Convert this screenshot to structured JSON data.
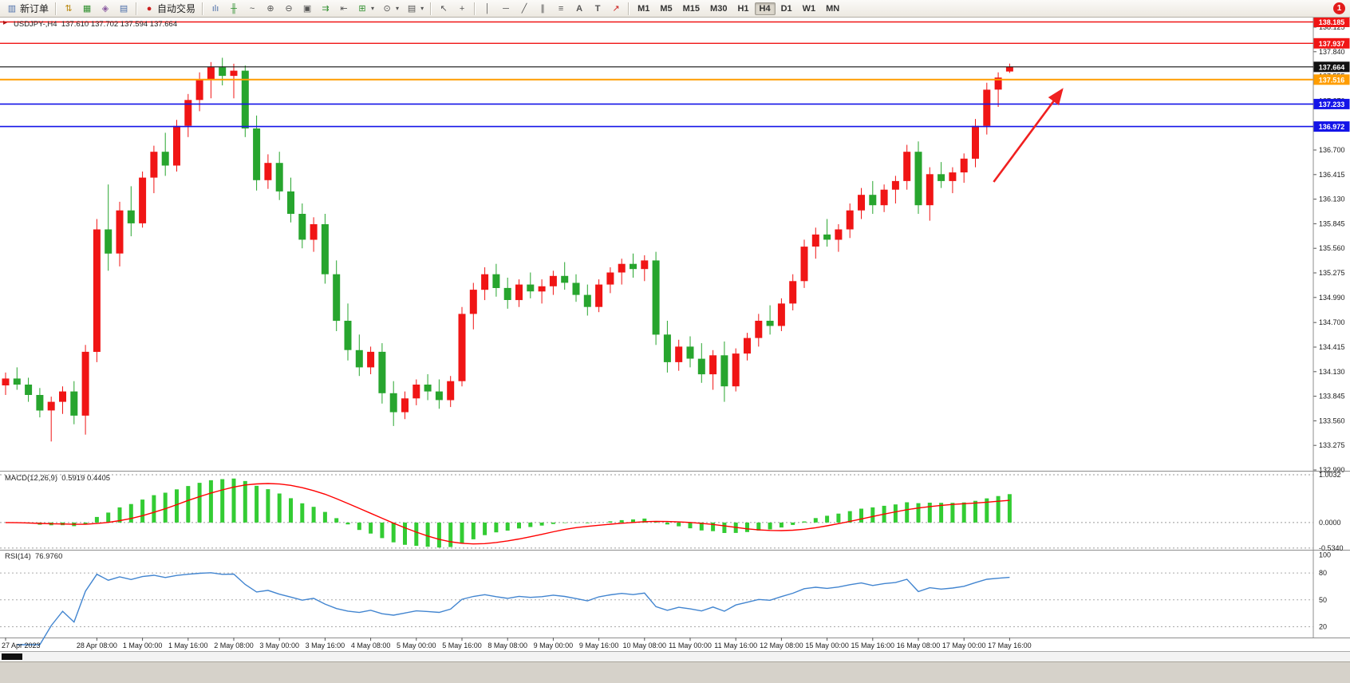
{
  "toolbar": {
    "new_order_label": "新订单",
    "autotrading_label": "自动交易",
    "timeframes": [
      "M1",
      "M5",
      "M15",
      "M30",
      "H1",
      "H4",
      "D1",
      "W1",
      "MN"
    ],
    "active_timeframe": "H4",
    "notification_count": "1",
    "icons": {
      "new_order": "▥",
      "market_watch": "⇅",
      "data_window": "▦",
      "navigator": "◈",
      "terminal": "▤",
      "autotrading": "●",
      "bar_chart": "ılı",
      "candlestick": "╫",
      "line_chart": "~",
      "zoom_in": "⊕",
      "zoom_out": "⊖",
      "tile_windows": "▣",
      "auto_scroll": "⇉",
      "chart_shift": "⇤",
      "indicators": "⊞",
      "periods": "⊙",
      "templates": "▤",
      "caret": "▾",
      "cursor": "↖",
      "crosshair": "+",
      "vertical_line": "│",
      "horizontal_line": "─",
      "trendline": "╱",
      "channel": "∥",
      "fibonacci": "≡",
      "text": "A",
      "text_label": "T",
      "arrows_tool": "↗",
      "one_click": "▸"
    }
  },
  "quote": {
    "symbol_period": "USDJPY-,H4",
    "ohlc": "137.610 137.702 137.594 137.664"
  },
  "indicator_labels": {
    "macd": "MACD(12,26,9)",
    "macd_values": "0.5919 0.4405",
    "rsi": "RSI(14)",
    "rsi_value": "76.9760"
  },
  "price_axis": {
    "labels": [
      "138.125",
      "137.840",
      "137.555",
      "137.270",
      "136.985",
      "136.700",
      "136.415",
      "136.130",
      "135.845",
      "135.560",
      "135.275",
      "134.990",
      "134.700",
      "134.415",
      "134.130",
      "133.845",
      "133.560",
      "133.275",
      "132.990"
    ]
  },
  "macd_axis": [
    {
      "v": 1.0032,
      "label": "1.0032"
    },
    {
      "v": 0,
      "label": "0.0000"
    },
    {
      "v": -0.534,
      "label": "-0.5340"
    }
  ],
  "rsi_axis": [
    {
      "v": 100,
      "label": "100"
    },
    {
      "v": 80,
      "label": "80"
    },
    {
      "v": 50,
      "label": "50"
    },
    {
      "v": 20,
      "label": "20"
    }
  ],
  "chart_data": {
    "type": "candlestick",
    "symbol": "USDJPY",
    "timeframe": "H4",
    "current_ohlc": {
      "open": 137.61,
      "high": 137.702,
      "low": 137.594,
      "close": 137.664
    },
    "colors": {
      "up": "#f01515",
      "down": "#27a52e",
      "macd": "#33cc33",
      "signal": "#ff0000",
      "rsi": "#4285d0"
    },
    "price_range": {
      "min": 132.99,
      "max": 138.236
    },
    "candles": [
      [
        133.97,
        134.12,
        133.86,
        134.05
      ],
      [
        134.05,
        134.18,
        133.92,
        133.98
      ],
      [
        133.98,
        134.06,
        133.78,
        133.86
      ],
      [
        133.86,
        133.94,
        133.6,
        133.68
      ],
      [
        133.68,
        133.84,
        133.32,
        133.78
      ],
      [
        133.78,
        133.96,
        133.64,
        133.9
      ],
      [
        133.9,
        134.02,
        133.52,
        133.62
      ],
      [
        133.62,
        134.44,
        133.4,
        134.36
      ],
      [
        134.36,
        135.9,
        134.24,
        135.78
      ],
      [
        135.78,
        136.3,
        135.3,
        135.5
      ],
      [
        135.5,
        136.1,
        135.35,
        136.0
      ],
      [
        136.0,
        136.28,
        135.7,
        135.85
      ],
      [
        135.85,
        136.45,
        135.8,
        136.38
      ],
      [
        136.38,
        136.75,
        136.2,
        136.68
      ],
      [
        136.68,
        136.9,
        136.4,
        136.52
      ],
      [
        136.52,
        137.05,
        136.45,
        136.98
      ],
      [
        136.98,
        137.35,
        136.85,
        137.28
      ],
      [
        137.28,
        137.6,
        137.15,
        137.52
      ],
      [
        137.52,
        137.72,
        137.3,
        137.66
      ],
      [
        137.66,
        137.77,
        137.45,
        137.56
      ],
      [
        137.56,
        137.7,
        137.3,
        137.62
      ],
      [
        137.62,
        137.68,
        136.85,
        136.95
      ],
      [
        136.95,
        137.1,
        136.23,
        136.35
      ],
      [
        136.35,
        136.65,
        136.25,
        136.55
      ],
      [
        136.55,
        136.68,
        136.12,
        136.22
      ],
      [
        136.22,
        136.38,
        135.86,
        135.96
      ],
      [
        135.96,
        136.08,
        135.56,
        135.66
      ],
      [
        135.66,
        135.92,
        135.52,
        135.84
      ],
      [
        135.84,
        135.96,
        135.15,
        135.26
      ],
      [
        135.26,
        135.42,
        134.6,
        134.72
      ],
      [
        134.72,
        134.92,
        134.26,
        134.38
      ],
      [
        134.38,
        134.56,
        134.08,
        134.18
      ],
      [
        134.18,
        134.42,
        134.1,
        134.36
      ],
      [
        134.36,
        134.46,
        133.76,
        133.88
      ],
      [
        133.88,
        134.02,
        133.5,
        133.66
      ],
      [
        133.66,
        133.9,
        133.58,
        133.82
      ],
      [
        133.82,
        134.04,
        133.74,
        133.98
      ],
      [
        133.98,
        134.1,
        133.8,
        133.9
      ],
      [
        133.9,
        134.04,
        133.7,
        133.8
      ],
      [
        133.8,
        134.08,
        133.72,
        134.02
      ],
      [
        134.02,
        134.88,
        133.96,
        134.8
      ],
      [
        134.8,
        135.16,
        134.62,
        135.08
      ],
      [
        135.08,
        135.34,
        134.96,
        135.26
      ],
      [
        135.26,
        135.38,
        135.0,
        135.1
      ],
      [
        135.1,
        135.22,
        134.86,
        134.96
      ],
      [
        134.96,
        135.2,
        134.88,
        135.14
      ],
      [
        135.14,
        135.28,
        134.98,
        135.06
      ],
      [
        135.06,
        135.2,
        134.92,
        135.12
      ],
      [
        135.12,
        135.3,
        135.02,
        135.24
      ],
      [
        135.24,
        135.4,
        135.08,
        135.16
      ],
      [
        135.16,
        135.26,
        134.94,
        135.02
      ],
      [
        135.02,
        135.14,
        134.78,
        134.88
      ],
      [
        134.88,
        135.2,
        134.82,
        135.14
      ],
      [
        135.14,
        135.34,
        135.04,
        135.28
      ],
      [
        135.28,
        135.44,
        135.14,
        135.38
      ],
      [
        135.38,
        135.5,
        135.22,
        135.32
      ],
      [
        135.32,
        135.48,
        135.18,
        135.42
      ],
      [
        135.42,
        135.52,
        134.44,
        134.56
      ],
      [
        134.56,
        134.72,
        134.12,
        134.24
      ],
      [
        134.24,
        134.5,
        134.14,
        134.42
      ],
      [
        134.42,
        134.54,
        134.18,
        134.28
      ],
      [
        134.28,
        134.46,
        134.0,
        134.1
      ],
      [
        134.1,
        134.38,
        133.92,
        134.32
      ],
      [
        134.32,
        134.48,
        133.78,
        133.96
      ],
      [
        133.96,
        134.4,
        133.9,
        134.34
      ],
      [
        134.34,
        134.58,
        134.26,
        134.52
      ],
      [
        134.52,
        134.8,
        134.42,
        134.72
      ],
      [
        134.72,
        134.9,
        134.56,
        134.66
      ],
      [
        134.66,
        134.98,
        134.6,
        134.92
      ],
      [
        134.92,
        135.26,
        134.84,
        135.18
      ],
      [
        135.18,
        135.66,
        135.1,
        135.58
      ],
      [
        135.58,
        135.8,
        135.44,
        135.72
      ],
      [
        135.72,
        135.9,
        135.58,
        135.66
      ],
      [
        135.66,
        135.84,
        135.52,
        135.78
      ],
      [
        135.78,
        136.08,
        135.68,
        136.0
      ],
      [
        136.0,
        136.26,
        135.9,
        136.18
      ],
      [
        136.18,
        136.34,
        135.96,
        136.06
      ],
      [
        136.06,
        136.3,
        135.98,
        136.24
      ],
      [
        136.24,
        136.4,
        136.08,
        136.34
      ],
      [
        136.34,
        136.76,
        136.24,
        136.68
      ],
      [
        136.68,
        136.8,
        135.96,
        136.06
      ],
      [
        136.06,
        136.5,
        135.88,
        136.42
      ],
      [
        136.42,
        136.56,
        136.26,
        136.34
      ],
      [
        136.34,
        136.5,
        136.2,
        136.44
      ],
      [
        136.44,
        136.66,
        136.32,
        136.6
      ],
      [
        136.6,
        137.06,
        136.5,
        136.98
      ],
      [
        136.98,
        137.48,
        136.88,
        137.4
      ],
      [
        137.4,
        137.6,
        137.2,
        137.54
      ],
      [
        137.61,
        137.702,
        137.594,
        137.664
      ]
    ],
    "time_labels": [
      [
        0,
        "27 Apr 2023"
      ],
      [
        8,
        "28 Apr 08:00"
      ],
      [
        12,
        "1 May 00:00"
      ],
      [
        16,
        "1 May 16:00"
      ],
      [
        20,
        "2 May 08:00"
      ],
      [
        24,
        "3 May 00:00"
      ],
      [
        28,
        "3 May 16:00"
      ],
      [
        32,
        "4 May 08:00"
      ],
      [
        36,
        "5 May 00:00"
      ],
      [
        40,
        "5 May 16:00"
      ],
      [
        44,
        "8 May 08:00"
      ],
      [
        48,
        "9 May 00:00"
      ],
      [
        52,
        "9 May 16:00"
      ],
      [
        56,
        "10 May 08:00"
      ],
      [
        60,
        "11 May 00:00"
      ],
      [
        64,
        "11 May 16:00"
      ],
      [
        68,
        "12 May 08:00"
      ],
      [
        72,
        "15 May 00:00"
      ],
      [
        76,
        "15 May 16:00"
      ],
      [
        80,
        "16 May 08:00"
      ],
      [
        84,
        "17 May 00:00"
      ],
      [
        88,
        "17 May 16:00"
      ]
    ],
    "hlines": [
      {
        "price": 138.185,
        "label": "138.185",
        "color": "#f01515",
        "width": 1.4
      },
      {
        "price": 137.937,
        "label": "137.937",
        "color": "#f01515",
        "width": 1.4
      },
      {
        "price": 137.664,
        "label": "137.664",
        "color": "#111111",
        "width": 1.1
      },
      {
        "price": 137.516,
        "label": "137.516",
        "color": "#ff9d00",
        "width": 2
      },
      {
        "price": 137.233,
        "label": "137.233",
        "color": "#1414e8",
        "width": 1.6
      },
      {
        "price": 136.972,
        "label": "136.972",
        "color": "#1414e8",
        "width": 1.6
      }
    ],
    "indicators": [
      {
        "name": "MACD",
        "params": [
          12,
          26,
          9
        ],
        "values": [
          0.5919,
          0.4405
        ],
        "scale": [
          1.0032,
          0.0,
          -0.534
        ]
      },
      {
        "name": "RSI",
        "params": [
          14
        ],
        "value": 76.976,
        "levels": [
          80,
          50,
          20
        ]
      }
    ],
    "annotations": [
      {
        "type": "arrow",
        "color": "#f02020",
        "from_bar": 86.6,
        "from_price": 136.33,
        "to_bar": 92.6,
        "to_price": 137.4
      }
    ]
  }
}
